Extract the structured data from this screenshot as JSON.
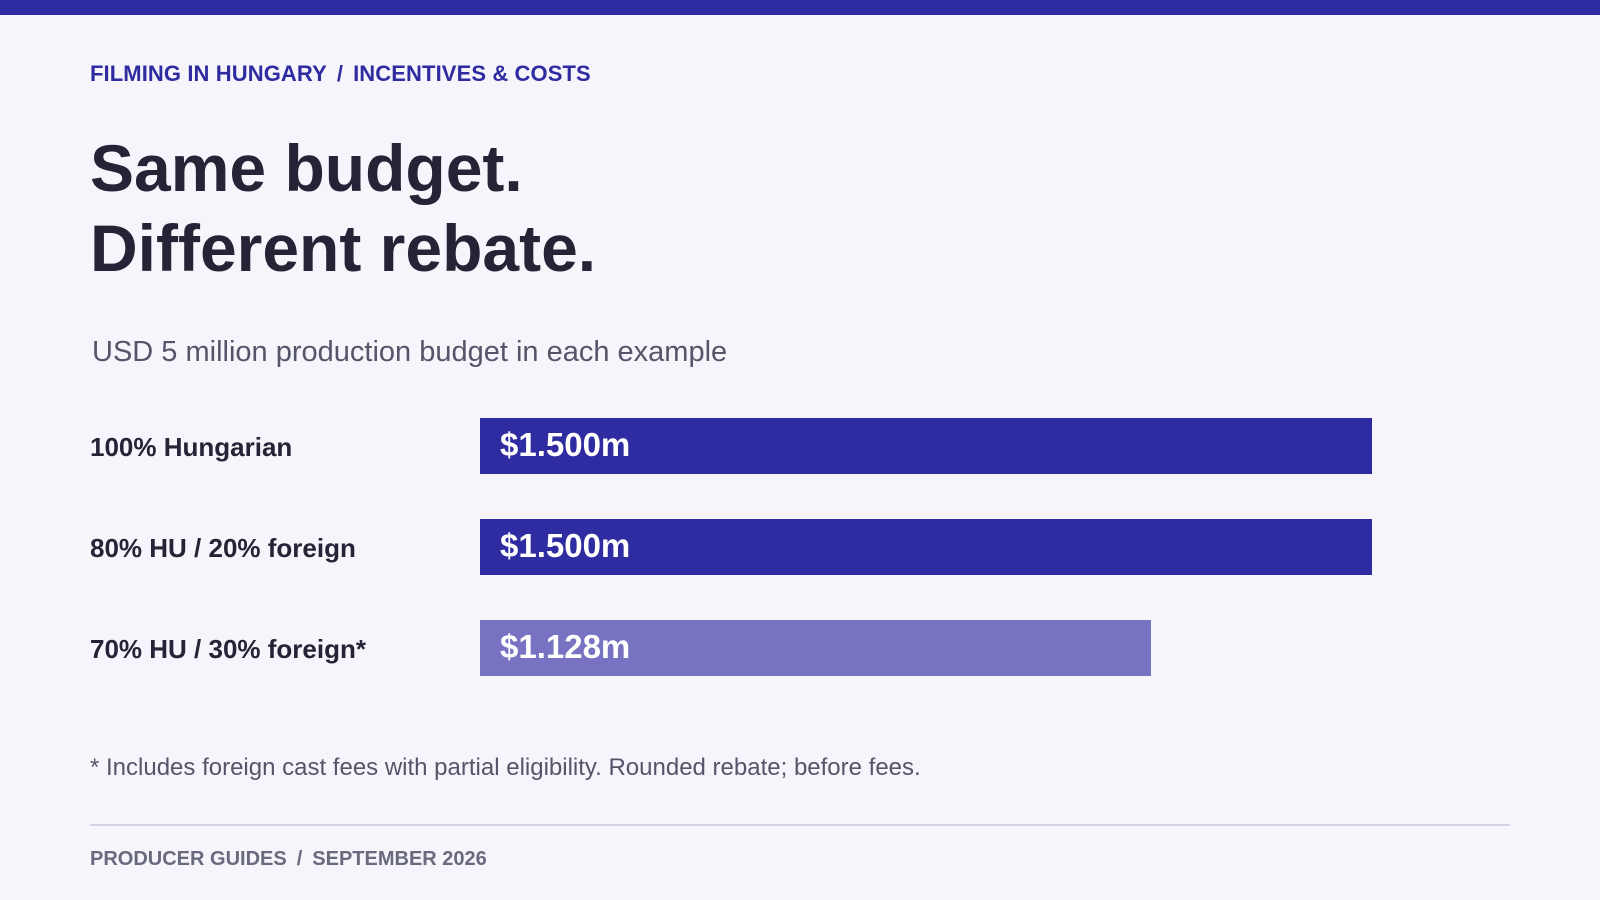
{
  "breadcrumb": {
    "section": "FILMING IN HUNGARY",
    "separator": "/",
    "page": "INCENTIVES & COSTS"
  },
  "title": {
    "line1": "Same budget.",
    "line2": "Different rebate."
  },
  "colors": {
    "accent": "#2f2ba0",
    "accent_light": "#7872c2"
  },
  "chart_data": {
    "type": "bar",
    "orientation": "horizontal",
    "subtitle": "USD 5 million production budget in each example",
    "categories": [
      "100% Hungarian",
      "80% HU / 20% foreign",
      "70% HU / 30% foreign*"
    ],
    "values": [
      1.5,
      1.5,
      1.128
    ],
    "value_labels": [
      "$1.500m",
      "$1.500m",
      "$1.128m"
    ],
    "unit": "USD million",
    "xlim": [
      0,
      1.5
    ],
    "grid": false,
    "bar_colors": [
      "#2f2ba0",
      "#2f2ba0",
      "#7872c2"
    ]
  },
  "footnote": "* Includes foreign cast fees with partial eligibility. Rounded rebate; before fees.",
  "footer": {
    "left": "PRODUCER GUIDES",
    "separator": "/",
    "right": "SEPTEMBER 2026"
  }
}
